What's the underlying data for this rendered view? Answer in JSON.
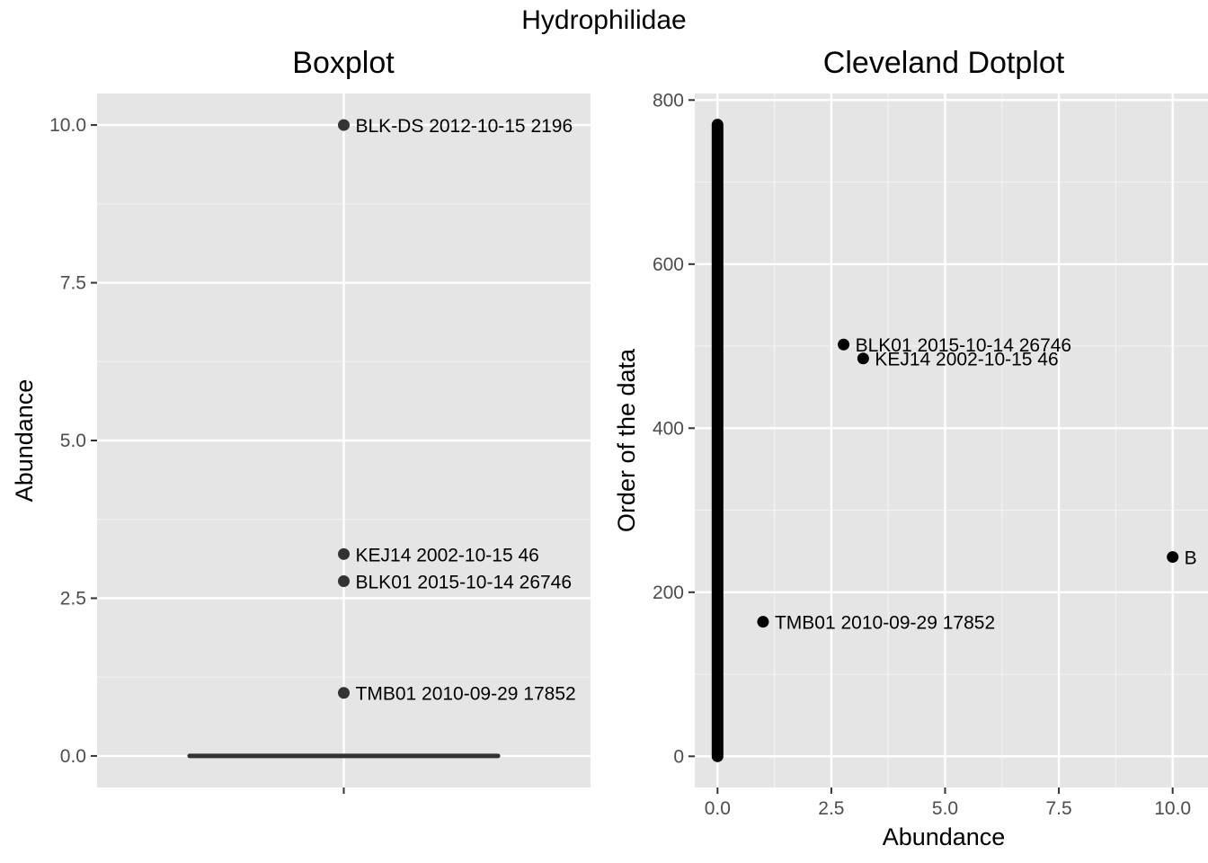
{
  "figure_title": "Hydrophilidae",
  "chart_data": [
    {
      "type": "boxplot",
      "title": "Boxplot",
      "xlabel": "",
      "ylabel": "Abundance",
      "ylim": [
        -0.5,
        10.5
      ],
      "yticks": [
        0.0,
        2.5,
        5.0,
        7.5,
        10.0
      ],
      "ytick_labels": [
        "0.0",
        "2.5",
        "5.0",
        "7.5",
        "10.0"
      ],
      "grid": true,
      "box": {
        "min": 0,
        "q1": 0,
        "median": 0,
        "q3": 0,
        "max": 0
      },
      "outliers": [
        {
          "value": 10.0,
          "label": "BLK-DS 2012-10-15 2196"
        },
        {
          "value": 3.2,
          "label": "KEJ14 2002-10-15 46"
        },
        {
          "value": 2.77,
          "label": "BLK01 2015-10-14 26746"
        },
        {
          "value": 1.0,
          "label": "TMB01 2010-09-29 17852"
        }
      ]
    },
    {
      "type": "scatter",
      "title": "Cleveland Dotplot",
      "xlabel": "Abundance",
      "ylabel": "Order of the data",
      "xlim": [
        -0.5,
        10.5
      ],
      "ylim": [
        -38,
        808
      ],
      "xticks": [
        0.0,
        2.5,
        5.0,
        7.5,
        10.0
      ],
      "xtick_labels": [
        "0.0",
        "2.5",
        "5.0",
        "7.5",
        "10.0"
      ],
      "yticks": [
        0,
        200,
        400,
        600,
        800
      ],
      "ytick_labels": [
        "0",
        "200",
        "400",
        "600",
        "800"
      ],
      "grid": true,
      "dense_zero_range": {
        "x": 0,
        "y_from": 0,
        "y_to": 770
      },
      "points": [
        {
          "x": 2.77,
          "y": 502,
          "label": "BLK01 2015-10-14 26746"
        },
        {
          "x": 3.2,
          "y": 485,
          "label": "KEJ14 2002-10-15 46"
        },
        {
          "x": 10.0,
          "y": 243,
          "label": "B"
        },
        {
          "x": 1.0,
          "y": 164,
          "label": "TMB01 2010-09-29 17852"
        }
      ]
    }
  ]
}
